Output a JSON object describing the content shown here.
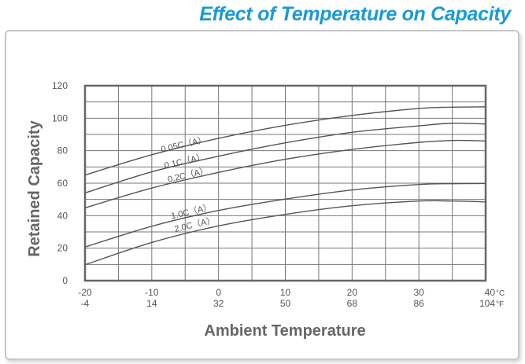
{
  "chart_data": {
    "type": "line",
    "title": "Effect of Temperature on Capacity",
    "xlabel": "Ambient Temperature",
    "ylabel": "Retained Capacity",
    "xlim": [
      -20,
      40
    ],
    "ylim": [
      0,
      120
    ],
    "grid": true,
    "x_ticks_c": [
      "-20",
      "-10",
      "0",
      "10",
      "20",
      "30",
      "40"
    ],
    "x_ticks_f": [
      "-4",
      "14",
      "32",
      "50",
      "68",
      "86",
      "104"
    ],
    "x_unit_c": "°C",
    "x_unit_f": "°F",
    "y_ticks": [
      "0",
      "20",
      "40",
      "60",
      "80",
      "100",
      "120"
    ],
    "x": [
      -20,
      -10,
      0,
      10,
      20,
      30,
      35,
      40
    ],
    "series": [
      {
        "name": "0.05C（A）",
        "values": [
          65,
          77.5,
          87.6,
          95.6,
          101.7,
          106,
          106.8,
          107
        ]
      },
      {
        "name": "0.1C（A）",
        "values": [
          54,
          67,
          76.6,
          84.8,
          91.3,
          95.3,
          96.9,
          96.4
        ]
      },
      {
        "name": "0.2C（A）",
        "values": [
          44.8,
          57,
          66.6,
          74.7,
          80.8,
          85.1,
          86.3,
          86
        ]
      },
      {
        "name": "1.0C（A）",
        "values": [
          20.7,
          33.5,
          43.2,
          50.2,
          55.8,
          59.2,
          59.7,
          59.8
        ]
      },
      {
        "name": "2.0C（A）",
        "values": [
          9.8,
          23.5,
          33.7,
          40.8,
          46.1,
          49,
          49,
          48.5
        ]
      }
    ],
    "line_color": "#555555"
  }
}
